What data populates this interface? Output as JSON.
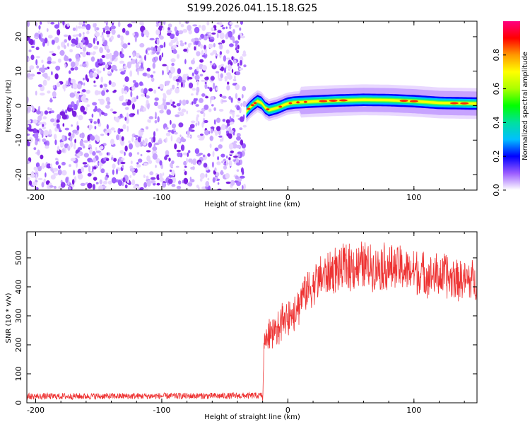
{
  "title": "S199.2026.041.15.18.G25",
  "chart_data": [
    {
      "type": "heatmap",
      "name": "spectrogram",
      "xlabel": "Height of straight line (km)",
      "ylabel": "Frequency (Hz)",
      "xlim": [
        -207,
        150
      ],
      "ylim": [
        -24.5,
        24.5
      ],
      "xticks": [
        -200,
        -100,
        0,
        100
      ],
      "yticks": [
        -20,
        -10,
        0,
        10,
        20
      ],
      "noise_region_x": [
        -207,
        -34
      ],
      "signal_track": [
        {
          "x": -33,
          "y": -1.8
        },
        {
          "x": -30,
          "y": -0.5
        },
        {
          "x": -27,
          "y": 0.5
        },
        {
          "x": -24,
          "y": 1.3
        },
        {
          "x": -21,
          "y": 0.8
        },
        {
          "x": -18,
          "y": -0.6
        },
        {
          "x": -15,
          "y": -1.3
        },
        {
          "x": -12,
          "y": -1.0
        },
        {
          "x": -9,
          "y": -0.7
        },
        {
          "x": -6,
          "y": -0.3
        },
        {
          "x": -3,
          "y": 0.2
        },
        {
          "x": 0,
          "y": 0.6
        },
        {
          "x": 5,
          "y": 0.9
        },
        {
          "x": 10,
          "y": 1.0
        },
        {
          "x": 20,
          "y": 1.2
        },
        {
          "x": 40,
          "y": 1.5
        },
        {
          "x": 60,
          "y": 1.7
        },
        {
          "x": 80,
          "y": 1.6
        },
        {
          "x": 100,
          "y": 1.3
        },
        {
          "x": 120,
          "y": 0.8
        },
        {
          "x": 150,
          "y": 0.6
        }
      ],
      "colorbar": {
        "label": "Normalized spectral amplitude",
        "range": [
          0,
          1
        ],
        "ticks": [
          "0.0",
          "0.2",
          "0.4",
          "0.6",
          "0.8"
        ],
        "colors": [
          "#ffffff",
          "#9b5cff",
          "#0000ff",
          "#00bfff",
          "#00e0a0",
          "#00ff00",
          "#aaff00",
          "#ffff00",
          "#ff9900",
          "#ff0000",
          "#ff0080"
        ]
      }
    },
    {
      "type": "line",
      "name": "snr",
      "xlabel": "Height of straight line (km)",
      "ylabel": "SNR (10 * v/v)",
      "xlim": [
        -207,
        150
      ],
      "ylim": [
        0,
        590
      ],
      "xticks": [
        -200,
        -100,
        0,
        100
      ],
      "yticks": [
        0,
        100,
        200,
        300,
        400,
        500
      ],
      "color": "#ee3333",
      "envelope": [
        {
          "x": -207,
          "y": 22
        },
        {
          "x": -40,
          "y": 24
        },
        {
          "x": -20,
          "y": 25
        },
        {
          "x": -19,
          "y": 240
        },
        {
          "x": -10,
          "y": 280
        },
        {
          "x": 0,
          "y": 330
        },
        {
          "x": 10,
          "y": 380
        },
        {
          "x": 20,
          "y": 420
        },
        {
          "x": 30,
          "y": 455
        },
        {
          "x": 40,
          "y": 475
        },
        {
          "x": 60,
          "y": 485
        },
        {
          "x": 80,
          "y": 480
        },
        {
          "x": 100,
          "y": 465
        },
        {
          "x": 120,
          "y": 450
        },
        {
          "x": 150,
          "y": 430
        }
      ]
    }
  ]
}
